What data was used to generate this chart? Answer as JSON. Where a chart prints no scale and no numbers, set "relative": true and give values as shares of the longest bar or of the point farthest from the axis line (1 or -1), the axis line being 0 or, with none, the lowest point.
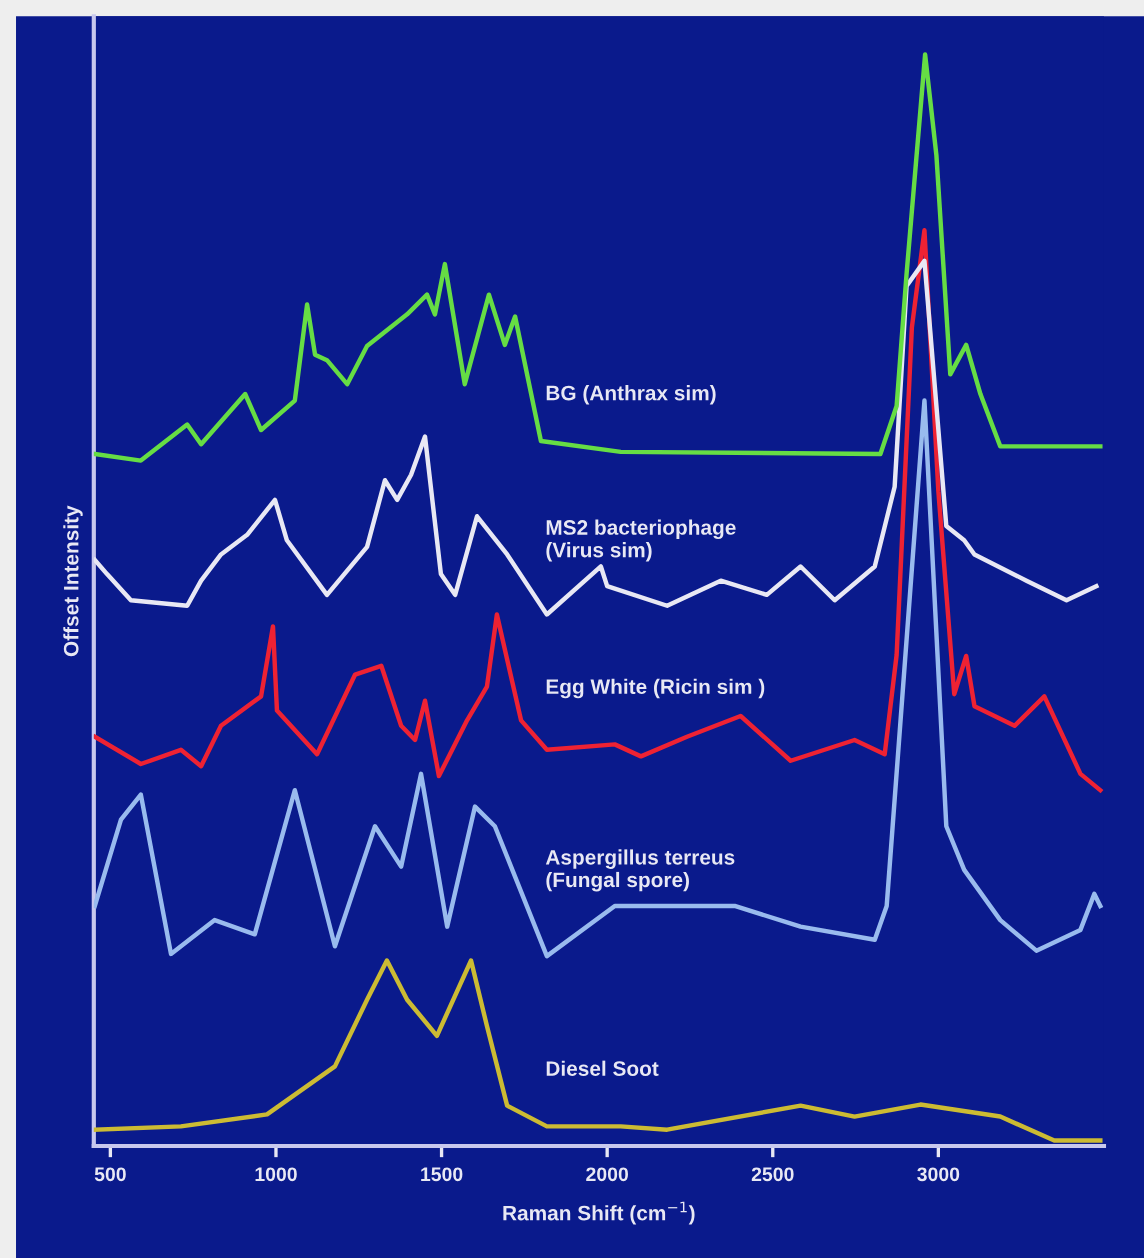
{
  "chart_data": {
    "type": "line",
    "relative": true,
    "xlabel": "Raman Shift (cm$^{−1}$)",
    "ylabel": "Offset Intensity",
    "xlim": [
      450,
      3500
    ],
    "xticks": [
      500,
      1000,
      1500,
      2000,
      2500,
      3000
    ],
    "grid": false,
    "legend": false,
    "marker": "none",
    "line_style": "solid",
    "series": [
      {
        "name": "BG (Anthrax sim)",
        "color": "#66dd44",
        "x": [
          453,
          592,
          732,
          774,
          907,
          955,
          1057,
          1094,
          1118,
          1154,
          1215,
          1275,
          1396,
          1456,
          1480,
          1510,
          1570,
          1643,
          1691,
          1722,
          1800,
          2041,
          2825,
          2874,
          2904,
          2960,
          2994,
          3036,
          3084,
          3127,
          3187,
          3489
        ],
        "values": [
          0.634,
          0.628,
          0.661,
          0.643,
          0.689,
          0.656,
          0.683,
          0.771,
          0.725,
          0.72,
          0.698,
          0.733,
          0.762,
          0.78,
          0.762,
          0.808,
          0.698,
          0.78,
          0.734,
          0.76,
          0.646,
          0.636,
          0.634,
          0.678,
          0.799,
          1.0,
          0.908,
          0.707,
          0.734,
          0.689,
          0.641,
          0.641
        ]
      },
      {
        "name": "MS2 bacteriophage\n(Virus sim)",
        "color": "#e8e8f4",
        "x": [
          453,
          490,
          562,
          732,
          774,
          834,
          913,
          997,
          1033,
          1154,
          1275,
          1329,
          1366,
          1408,
          1450,
          1498,
          1541,
          1607,
          1698,
          1818,
          1981,
          2000,
          2181,
          2343,
          2482,
          2584,
          2687,
          2808,
          2868,
          2904,
          2958,
          3024,
          3078,
          3109,
          3266,
          3387,
          3477
        ],
        "values": [
          0.537,
          0.524,
          0.5,
          0.495,
          0.518,
          0.542,
          0.56,
          0.592,
          0.555,
          0.505,
          0.549,
          0.61,
          0.592,
          0.615,
          0.65,
          0.524,
          0.505,
          0.577,
          0.542,
          0.487,
          0.531,
          0.513,
          0.495,
          0.518,
          0.505,
          0.531,
          0.5,
          0.531,
          0.604,
          0.788,
          0.811,
          0.568,
          0.555,
          0.542,
          0.518,
          0.5,
          0.513
        ]
      },
      {
        "name": "Egg White (Ricin sim )",
        "color": "#ee2233",
        "x": [
          453,
          592,
          713,
          774,
          834,
          955,
          991,
          1003,
          1124,
          1239,
          1318,
          1378,
          1420,
          1450,
          1492,
          1577,
          1637,
          1667,
          1740,
          1818,
          2023,
          2102,
          2241,
          2403,
          2554,
          2747,
          2838,
          2874,
          2920,
          2958,
          3000,
          3048,
          3084,
          3109,
          3230,
          3320,
          3429,
          3489
        ],
        "values": [
          0.375,
          0.35,
          0.363,
          0.348,
          0.385,
          0.412,
          0.476,
          0.399,
          0.359,
          0.432,
          0.44,
          0.385,
          0.372,
          0.408,
          0.339,
          0.39,
          0.421,
          0.487,
          0.39,
          0.363,
          0.368,
          0.357,
          0.375,
          0.394,
          0.353,
          0.372,
          0.359,
          0.45,
          0.75,
          0.839,
          0.6,
          0.414,
          0.449,
          0.403,
          0.385,
          0.412,
          0.341,
          0.326
        ]
      },
      {
        "name": "Aspergillus terreus\n(Fungal spore)",
        "color": "#99bbee",
        "x": [
          453,
          532,
          592,
          683,
          815,
          936,
          1057,
          1178,
          1299,
          1378,
          1438,
          1517,
          1601,
          1661,
          1818,
          2023,
          2102,
          2385,
          2584,
          2808,
          2844,
          2958,
          3024,
          3078,
          3187,
          3296,
          3429,
          3471,
          3489
        ],
        "values": [
          0.22,
          0.299,
          0.322,
          0.176,
          0.207,
          0.194,
          0.326,
          0.183,
          0.293,
          0.256,
          0.341,
          0.201,
          0.311,
          0.293,
          0.174,
          0.22,
          0.22,
          0.22,
          0.201,
          0.189,
          0.22,
          0.683,
          0.293,
          0.253,
          0.207,
          0.179,
          0.198,
          0.231,
          0.22
        ]
      },
      {
        "name": "Diesel Soot",
        "color": "#ccbb33",
        "x": [
          453,
          713,
          973,
          1178,
          1275,
          1335,
          1396,
          1486,
          1589,
          1637,
          1698,
          1818,
          2041,
          2181,
          2584,
          2747,
          2946,
          3187,
          3350,
          3489
        ],
        "values": [
          0.015,
          0.018,
          0.029,
          0.073,
          0.134,
          0.17,
          0.134,
          0.101,
          0.17,
          0.11,
          0.037,
          0.018,
          0.018,
          0.015,
          0.037,
          0.027,
          0.038,
          0.027,
          0.005,
          0.005
        ]
      }
    ]
  }
}
